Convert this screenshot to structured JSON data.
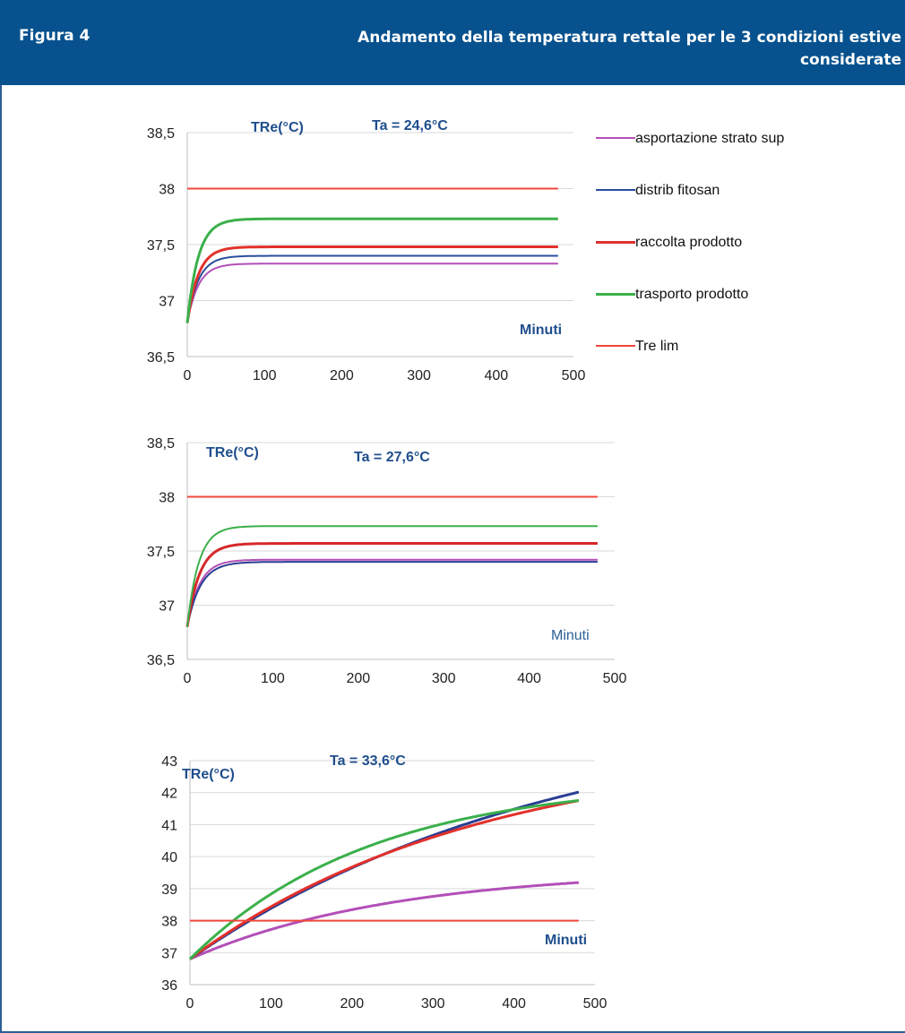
{
  "header": {
    "label": "Figura 4",
    "title": "Andamento della temperatura rettale per le 3 condizioni estive considerate"
  },
  "legend": [
    {
      "label": "asportazione strato sup",
      "color": "#b34fb8"
    },
    {
      "label": "distrib fitosan",
      "color": "#2a4e9c"
    },
    {
      "label": "raccolta prodotto",
      "color": "#e2312b"
    },
    {
      "label": "trasporto prodotto",
      "color": "#3bb04b"
    },
    {
      "label": "Tre lim",
      "color": "#f0473a"
    }
  ],
  "chart_data": [
    {
      "type": "line",
      "ylabel": "TRe(°C)",
      "annotation": "Ta = 24,6°C",
      "xlabel": "Minuti",
      "xlim": [
        0,
        500
      ],
      "ylim": [
        36.5,
        38.5
      ],
      "xticks": [
        "0",
        "100",
        "200",
        "300",
        "400",
        "500"
      ],
      "yticks": [
        "36,5",
        "37",
        "37,5",
        "38",
        "38,5"
      ],
      "series": [
        {
          "name": "asportazione strato sup",
          "color": "#b34fb8",
          "width": 2,
          "model": "sat",
          "start": 36.8,
          "end": 37.33,
          "k": 0.07,
          "xmax": 480
        },
        {
          "name": "distrib fitosan",
          "color": "#2a4e9c",
          "width": 2,
          "model": "sat",
          "start": 36.8,
          "end": 37.4,
          "k": 0.07,
          "xmax": 480
        },
        {
          "name": "raccolta prodotto",
          "color": "#e2312b",
          "width": 3,
          "model": "sat",
          "start": 36.8,
          "end": 37.48,
          "k": 0.07,
          "xmax": 480
        },
        {
          "name": "trasporto prodotto",
          "color": "#3bb04b",
          "width": 3,
          "model": "sat",
          "start": 36.8,
          "end": 37.73,
          "k": 0.07,
          "xmax": 480
        },
        {
          "name": "Tre lim",
          "color": "#f0473a",
          "width": 2,
          "model": "const",
          "start": 38,
          "end": 38,
          "k": 0,
          "xmax": 480
        }
      ]
    },
    {
      "type": "line",
      "ylabel": "TRe(°C)",
      "annotation": "Ta = 27,6°C",
      "xlabel": "Minuti",
      "xlim": [
        0,
        500
      ],
      "ylim": [
        36.5,
        38.5
      ],
      "xticks": [
        "0",
        "100",
        "200",
        "300",
        "400",
        "500"
      ],
      "yticks": [
        "36,5",
        "37",
        "37,5",
        "38",
        "38,5"
      ],
      "series": [
        {
          "name": "asportazione strato sup",
          "color": "#b34fb8",
          "width": 2,
          "model": "sat",
          "start": 36.8,
          "end": 37.42,
          "k": 0.07,
          "xmax": 480
        },
        {
          "name": "distrib fitosan",
          "color": "#2a3e92",
          "width": 2,
          "model": "sat",
          "start": 36.8,
          "end": 37.4,
          "k": 0.065,
          "xmax": 480
        },
        {
          "name": "raccolta prodotto",
          "color": "#d6282a",
          "width": 3,
          "model": "sat",
          "start": 36.8,
          "end": 37.57,
          "k": 0.07,
          "xmax": 480
        },
        {
          "name": "trasporto prodotto",
          "color": "#3bb04b",
          "width": 2,
          "model": "sat",
          "start": 36.8,
          "end": 37.73,
          "k": 0.075,
          "xmax": 480
        },
        {
          "name": "Tre lim",
          "color": "#f0473a",
          "width": 2,
          "model": "const",
          "start": 38,
          "end": 38,
          "k": 0,
          "xmax": 480
        }
      ]
    },
    {
      "type": "line",
      "ylabel": "TRe(°C)",
      "annotation": "Ta = 33,6°C",
      "xlabel": "Minuti",
      "xlim": [
        0,
        500
      ],
      "ylim": [
        36,
        43
      ],
      "xticks": [
        "0",
        "100",
        "200",
        "300",
        "400",
        "500"
      ],
      "yticks": [
        "36",
        "37",
        "38",
        "39",
        "40",
        "41",
        "42",
        "43"
      ],
      "series": [
        {
          "name": "asportazione strato sup",
          "color": "#b34fb8",
          "width": 3,
          "model": "sat",
          "start": 36.8,
          "end": 39.6,
          "k": 0.004,
          "xmax": 480
        },
        {
          "name": "distrib fitosan",
          "color": "#2a3e92",
          "width": 3,
          "model": "sat",
          "start": 36.8,
          "end": 44.8,
          "k": 0.0022,
          "xmax": 480
        },
        {
          "name": "raccolta prodotto",
          "color": "#e2312b",
          "width": 3,
          "model": "sat",
          "start": 36.8,
          "end": 43.5,
          "k": 0.0028,
          "xmax": 480
        },
        {
          "name": "trasporto prodotto",
          "color": "#3bb04b",
          "width": 3,
          "model": "sat",
          "start": 36.8,
          "end": 42.4,
          "k": 0.0045,
          "xmax": 480
        },
        {
          "name": "Tre lim",
          "color": "#f0473a",
          "width": 2,
          "model": "const",
          "start": 38,
          "end": 38,
          "k": 0,
          "xmax": 480
        }
      ]
    }
  ]
}
